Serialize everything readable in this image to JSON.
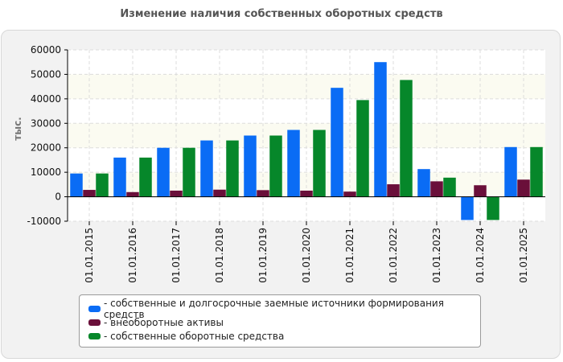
{
  "chart_data": {
    "type": "bar",
    "title": "Изменение наличия собственных оборотных средств",
    "ylabel": "тыс.",
    "ylim": [
      -10000,
      60000
    ],
    "yticks": [
      -10000,
      0,
      10000,
      20000,
      30000,
      40000,
      50000,
      60000
    ],
    "ytick_labels": [
      "-10000",
      "0",
      "10000",
      "20000",
      "30000",
      "40000",
      "50000",
      "60000"
    ],
    "grid": true,
    "legend_position": "bottom",
    "categories": [
      "01.01.2015",
      "01.01.2016",
      "01.01.2017",
      "01.01.2018",
      "01.01.2019",
      "01.01.2020",
      "01.01.2021",
      "01.01.2022",
      "01.01.2023",
      "01.01.2024",
      "01.01.2025"
    ],
    "series": [
      {
        "name": "- собственные и долгосрочные заемные источники формирования средств",
        "color": "#0a6cf5",
        "values": [
          9500,
          16000,
          20000,
          23000,
          25000,
          27300,
          44500,
          55000,
          11300,
          -9500,
          20300
        ]
      },
      {
        "name": "- внеоборотные активы",
        "color": "#6a0f3a",
        "values": [
          2800,
          1900,
          2500,
          2900,
          2700,
          2500,
          2100,
          5100,
          6300,
          4700,
          7000
        ]
      },
      {
        "name": "- собственные оборотные средства",
        "color": "#06872a",
        "values": [
          9500,
          16000,
          20000,
          23000,
          25000,
          27300,
          39500,
          47700,
          7800,
          -9500,
          20300
        ]
      }
    ]
  }
}
